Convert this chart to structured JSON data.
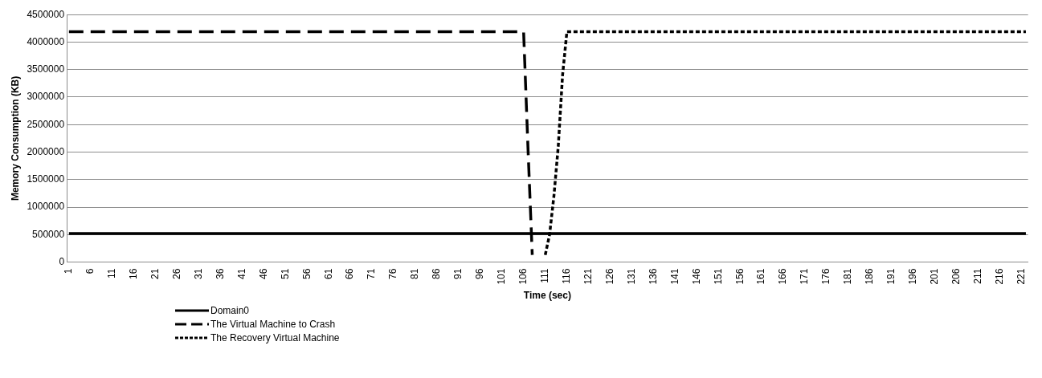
{
  "chart_data": {
    "type": "line",
    "xlabel": "Time (sec)",
    "ylabel": "Memory Consumption (KB)",
    "xlim": [
      0.5,
      222.5
    ],
    "xticks": [
      1,
      6,
      11,
      16,
      21,
      26,
      31,
      36,
      41,
      46,
      51,
      56,
      61,
      66,
      71,
      76,
      81,
      86,
      91,
      96,
      101,
      106,
      111,
      116,
      121,
      126,
      131,
      136,
      141,
      146,
      151,
      156,
      161,
      166,
      171,
      176,
      181,
      186,
      191,
      196,
      201,
      206,
      211,
      216,
      221
    ],
    "ylim": [
      0,
      4500000
    ],
    "yticks": [
      0,
      500000,
      1000000,
      1500000,
      2000000,
      2500000,
      3000000,
      3500000,
      4000000,
      4500000
    ],
    "grid": "y",
    "legend": "bottom",
    "marker": "none",
    "series": [
      {
        "name": "Domain0",
        "color": "#000000",
        "line_style": "solid",
        "x": [
          1,
          222
        ],
        "values": [
          520000,
          520000
        ]
      },
      {
        "name": "The Virtual Machine to Crash",
        "color": "#000000",
        "line_style": "dashed",
        "x": [
          1,
          106,
          107,
          108
        ],
        "values": [
          4190000,
          4190000,
          2100000,
          130000
        ]
      },
      {
        "name": "The Recovery Virtual Machine",
        "color": "#000000",
        "line_style": "dotted",
        "x": [
          111,
          112,
          113,
          114,
          115,
          116,
          222
        ],
        "values": [
          130000,
          500000,
          1200000,
          2100000,
          3400000,
          4190000,
          4190000
        ]
      }
    ]
  }
}
